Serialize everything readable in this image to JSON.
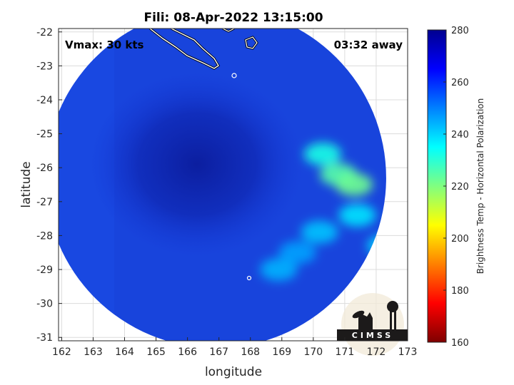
{
  "title": "Fili: 08-Apr-2022 13:15:00",
  "annotations": {
    "vmax": "Vmax: 30 kts",
    "away": "03:32 away"
  },
  "logo": {
    "text": "CIMSS"
  },
  "axes": {
    "xlabel": "longitude",
    "ylabel": "latitude",
    "xlim": [
      161.9,
      173
    ],
    "ylim": [
      -31.1,
      -21.9
    ],
    "xticks": [
      "162",
      "163",
      "164",
      "165",
      "166",
      "167",
      "168",
      "169",
      "170",
      "171",
      "172",
      "173"
    ],
    "yticks": [
      "-22",
      "-23",
      "-24",
      "-25",
      "-26",
      "-27",
      "-28",
      "-29",
      "-30",
      "-31"
    ]
  },
  "colorbar": {
    "label": "Brightness Temp - Horizontal Polarization",
    "range": [
      160,
      280
    ],
    "ticks": [
      "280",
      "260",
      "240",
      "220",
      "200",
      "180",
      "160"
    ],
    "colors": [
      "#7f0000",
      "#ff0000",
      "#ffa000",
      "#ffff00",
      "#80ff80",
      "#00ffff",
      "#0080ff",
      "#0000ff",
      "#00008f"
    ]
  },
  "chart_data": {
    "type": "heatmap",
    "title": "Fili: 08-Apr-2022 13:15:00",
    "xlabel": "longitude",
    "ylabel": "latitude",
    "xlim": [
      161.9,
      173
    ],
    "ylim": [
      -31.1,
      -21.9
    ],
    "colorbar_range": [
      160,
      280
    ],
    "swath_center": [
      166.9,
      -26.3
    ],
    "swath_radius_deg": 5.5,
    "background_value": 258,
    "eye_center": [
      166.3,
      -25.9
    ],
    "features": [
      {
        "name": "cold band",
        "lon": 170.8,
        "lat": -26.2,
        "value": 225
      },
      {
        "name": "cold band",
        "lon": 171.3,
        "lat": -26.5,
        "value": 222
      },
      {
        "name": "cold band",
        "lon": 170.3,
        "lat": -25.6,
        "value": 232
      },
      {
        "name": "cold band",
        "lon": 171.4,
        "lat": -27.4,
        "value": 238
      },
      {
        "name": "cold band",
        "lon": 172.3,
        "lat": -28.3,
        "value": 240
      },
      {
        "name": "cold band",
        "lon": 170.2,
        "lat": -27.9,
        "value": 242
      },
      {
        "name": "cold band",
        "lon": 168.9,
        "lat": -29.0,
        "value": 244
      },
      {
        "name": "cold band",
        "lon": 169.5,
        "lat": -28.5,
        "value": 246
      }
    ]
  }
}
